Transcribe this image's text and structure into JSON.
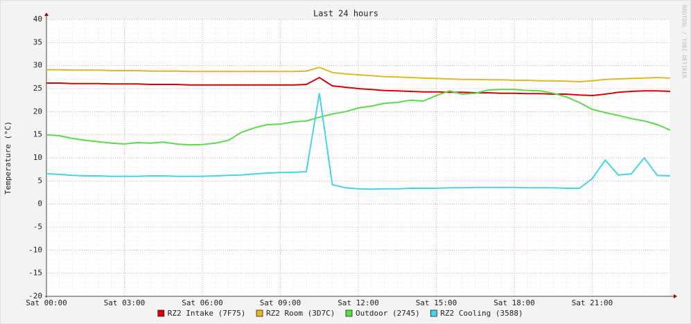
{
  "chart_data": {
    "type": "line",
    "title": "Last 24 hours",
    "y_label": "Temperature (°C)",
    "watermark": "RRDTOOL / TOBI OETIKER",
    "categories": [
      "Sat 00:00",
      null,
      null,
      null,
      null,
      null,
      "Sat 03:00",
      null,
      null,
      null,
      null,
      null,
      "Sat 06:00",
      null,
      null,
      null,
      null,
      null,
      "Sat 09:00",
      null,
      null,
      null,
      null,
      null,
      "Sat 12:00",
      null,
      null,
      null,
      null,
      null,
      "Sat 15:00",
      null,
      null,
      null,
      null,
      null,
      "Sat 18:00",
      null,
      null,
      null,
      null,
      null,
      "Sat 21:00",
      null,
      null,
      null,
      null,
      null,
      null
    ],
    "ylim": [
      -20,
      40
    ],
    "yticks": [
      -20,
      -15,
      -10,
      -5,
      0,
      5,
      10,
      15,
      20,
      25,
      30,
      35,
      40
    ],
    "grid": true,
    "series": [
      {
        "name": "RZ2 Intake (7F75)",
        "color": "#dd0000",
        "values": [
          26.2,
          26.2,
          26.1,
          26.1,
          26.1,
          26.0,
          26.0,
          26.0,
          25.9,
          25.9,
          25.9,
          25.8,
          25.8,
          25.8,
          25.8,
          25.8,
          25.8,
          25.8,
          25.8,
          25.8,
          25.9,
          27.4,
          25.6,
          25.3,
          25.0,
          24.8,
          24.6,
          24.5,
          24.4,
          24.3,
          24.3,
          24.2,
          24.2,
          24.1,
          24.1,
          24.0,
          24.0,
          23.9,
          23.9,
          23.8,
          23.8,
          23.6,
          23.5,
          23.8,
          24.2,
          24.4,
          24.5,
          24.5,
          24.4
        ]
      },
      {
        "name": "RZ2 Room (3D7C)",
        "color": "#e0b820",
        "values": [
          29.1,
          29.1,
          29.0,
          29.0,
          29.0,
          28.9,
          28.9,
          28.9,
          28.8,
          28.8,
          28.8,
          28.7,
          28.7,
          28.7,
          28.7,
          28.7,
          28.7,
          28.7,
          28.7,
          28.7,
          28.8,
          29.6,
          28.5,
          28.2,
          28.0,
          27.8,
          27.6,
          27.5,
          27.4,
          27.3,
          27.2,
          27.1,
          27.0,
          27.0,
          26.9,
          26.9,
          26.8,
          26.8,
          26.7,
          26.7,
          26.6,
          26.5,
          26.7,
          27.0,
          27.1,
          27.2,
          27.3,
          27.4,
          27.3
        ]
      },
      {
        "name": "Outdoor (2745)",
        "color": "#55dd44",
        "values": [
          15.0,
          14.8,
          14.2,
          13.8,
          13.5,
          13.2,
          13.0,
          13.3,
          13.2,
          13.4,
          13.0,
          12.8,
          12.9,
          13.2,
          13.8,
          15.5,
          16.5,
          17.2,
          17.3,
          17.8,
          18.0,
          18.8,
          19.5,
          20.0,
          20.8,
          21.2,
          21.8,
          22.0,
          22.5,
          22.3,
          23.5,
          24.5,
          23.8,
          24.0,
          24.7,
          24.8,
          24.8,
          24.6,
          24.5,
          24.0,
          23.2,
          22.0,
          20.5,
          19.8,
          19.2,
          18.5,
          18.0,
          17.2,
          16.0
        ]
      },
      {
        "name": "RZ2 Cooling (3588)",
        "color": "#44d4e4",
        "values": [
          6.6,
          6.4,
          6.2,
          6.1,
          6.1,
          6.0,
          6.0,
          6.0,
          6.1,
          6.1,
          6.0,
          6.0,
          6.0,
          6.1,
          6.2,
          6.3,
          6.5,
          6.7,
          6.8,
          6.9,
          7.0,
          24.0,
          4.2,
          3.5,
          3.3,
          3.2,
          3.3,
          3.3,
          3.4,
          3.4,
          3.4,
          3.5,
          3.5,
          3.6,
          3.6,
          3.6,
          3.6,
          3.5,
          3.5,
          3.5,
          3.4,
          3.4,
          5.5,
          9.5,
          6.3,
          6.5,
          10.0,
          6.2,
          6.1
        ]
      }
    ]
  }
}
